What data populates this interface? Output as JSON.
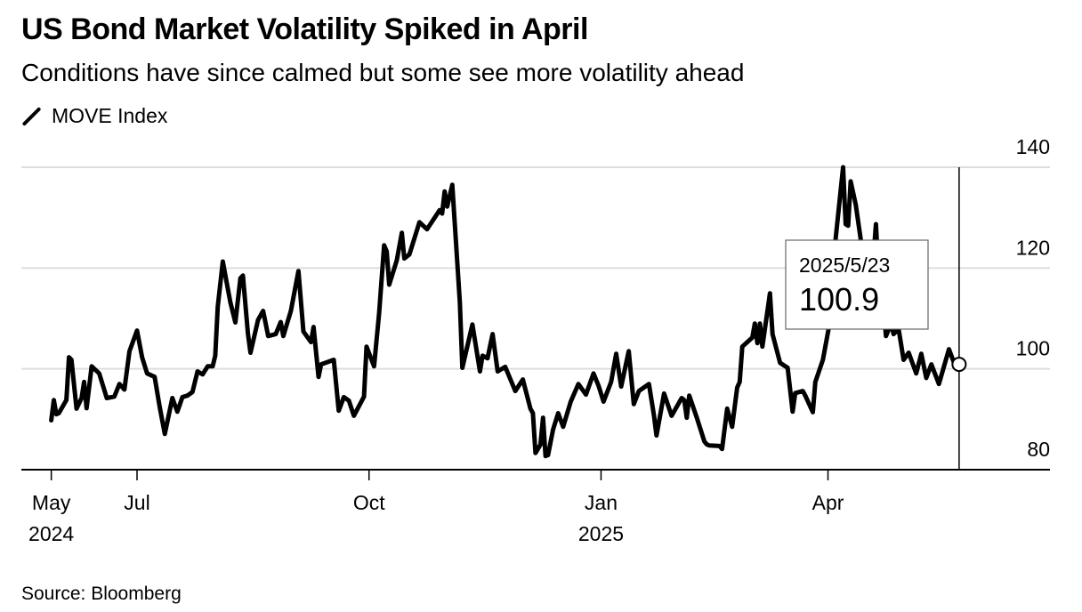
{
  "header": {
    "title": "US Bond Market Volatility Spiked in April",
    "subtitle": "Conditions have since calmed but some see more volatility ahead"
  },
  "footer": {
    "source": "Source: Bloomberg"
  },
  "tooltip": {
    "date": "2025/5/23",
    "value": "100.9"
  },
  "chart_data": {
    "type": "line",
    "title": "US Bond Market Volatility Spiked in April",
    "subtitle": "Conditions have since calmed but some see more volatility ahead",
    "xlabel": "",
    "ylabel": "",
    "ylim": [
      80,
      140
    ],
    "xlim": [
      "2024-05-28",
      "2025-05-23"
    ],
    "grid": true,
    "legend": {
      "position": "top-left",
      "entries": [
        "MOVE Index"
      ]
    },
    "line_color": "#000000",
    "y_ticks": [
      "140",
      "120",
      "100",
      "80"
    ],
    "x_ticks": [
      {
        "date": "2024-05-28",
        "label": "May",
        "sublabel": "2024"
      },
      {
        "date": "2024-07-01",
        "label": "Jul",
        "sublabel": ""
      },
      {
        "date": "2024-10-01",
        "label": "Oct",
        "sublabel": ""
      },
      {
        "date": "2025-01-01",
        "label": "Jan",
        "sublabel": "2025"
      },
      {
        "date": "2025-04-01",
        "label": "Apr",
        "sublabel": ""
      }
    ],
    "highlight": {
      "date": "2025-05-23",
      "value": 100.9,
      "label": "2025/5/23"
    },
    "series": [
      {
        "name": "MOVE Index",
        "points": [
          [
            "2024-05-28",
            89.8
          ],
          [
            "2024-05-29",
            93.8
          ],
          [
            "2024-05-30",
            91.0
          ],
          [
            "2024-05-31",
            91.2
          ],
          [
            "2024-06-03",
            93.8
          ],
          [
            "2024-06-04",
            102.3
          ],
          [
            "2024-06-05",
            101.8
          ],
          [
            "2024-06-07",
            92.1
          ],
          [
            "2024-06-09",
            94.2
          ],
          [
            "2024-06-10",
            97.4
          ],
          [
            "2024-06-11",
            92.2
          ],
          [
            "2024-06-13",
            100.5
          ],
          [
            "2024-06-16",
            99.1
          ],
          [
            "2024-06-19",
            94.2
          ],
          [
            "2024-06-22",
            94.5
          ],
          [
            "2024-06-24",
            97.0
          ],
          [
            "2024-06-26",
            95.9
          ],
          [
            "2024-06-28",
            103.5
          ],
          [
            "2024-07-01",
            107.6
          ],
          [
            "2024-07-03",
            102.3
          ],
          [
            "2024-07-05",
            99.1
          ],
          [
            "2024-07-08",
            98.4
          ],
          [
            "2024-07-10",
            92.4
          ],
          [
            "2024-07-12",
            87.1
          ],
          [
            "2024-07-15",
            94.2
          ],
          [
            "2024-07-17",
            91.5
          ],
          [
            "2024-07-19",
            94.4
          ],
          [
            "2024-07-21",
            94.7
          ],
          [
            "2024-07-23",
            95.4
          ],
          [
            "2024-07-25",
            99.5
          ],
          [
            "2024-07-27",
            98.9
          ],
          [
            "2024-07-29",
            100.5
          ],
          [
            "2024-07-31",
            100.5
          ],
          [
            "2024-08-01",
            102.6
          ],
          [
            "2024-08-02",
            112.3
          ],
          [
            "2024-08-04",
            121.3
          ],
          [
            "2024-08-07",
            113.2
          ],
          [
            "2024-08-09",
            109.2
          ],
          [
            "2024-08-11",
            118.0
          ],
          [
            "2024-08-12",
            118.5
          ],
          [
            "2024-08-14",
            106.9
          ],
          [
            "2024-08-15",
            103.2
          ],
          [
            "2024-08-18",
            109.7
          ],
          [
            "2024-08-20",
            111.5
          ],
          [
            "2024-08-22",
            106.5
          ],
          [
            "2024-08-25",
            106.9
          ],
          [
            "2024-08-27",
            109.3
          ],
          [
            "2024-08-28",
            106.5
          ],
          [
            "2024-08-31",
            111.5
          ],
          [
            "2024-09-03",
            119.4
          ],
          [
            "2024-09-05",
            107.4
          ],
          [
            "2024-09-08",
            105.3
          ],
          [
            "2024-09-09",
            108.3
          ],
          [
            "2024-09-11",
            98.4
          ],
          [
            "2024-09-12",
            100.9
          ],
          [
            "2024-09-17",
            101.8
          ],
          [
            "2024-09-19",
            91.7
          ],
          [
            "2024-09-21",
            94.4
          ],
          [
            "2024-09-23",
            93.7
          ],
          [
            "2024-09-25",
            90.7
          ],
          [
            "2024-09-29",
            94.5
          ],
          [
            "2024-09-30",
            104.4
          ],
          [
            "2024-10-03",
            100.5
          ],
          [
            "2024-10-05",
            111.1
          ],
          [
            "2024-10-07",
            124.5
          ],
          [
            "2024-10-08",
            123.3
          ],
          [
            "2024-10-09",
            116.7
          ],
          [
            "2024-10-12",
            121.5
          ],
          [
            "2024-10-14",
            127.0
          ],
          [
            "2024-10-15",
            121.9
          ],
          [
            "2024-10-17",
            122.7
          ],
          [
            "2024-10-21",
            129.1
          ],
          [
            "2024-10-24",
            127.7
          ],
          [
            "2024-10-29",
            131.5
          ],
          [
            "2024-10-30",
            130.8
          ],
          [
            "2024-10-31",
            135.2
          ],
          [
            "2024-11-01",
            132.2
          ],
          [
            "2024-11-03",
            136.5
          ],
          [
            "2024-11-06",
            113.2
          ],
          [
            "2024-11-07",
            100.2
          ],
          [
            "2024-11-11",
            108.8
          ],
          [
            "2024-11-14",
            99.5
          ],
          [
            "2024-11-15",
            102.6
          ],
          [
            "2024-11-17",
            102.1
          ],
          [
            "2024-11-19",
            106.9
          ],
          [
            "2024-11-21",
            99.5
          ],
          [
            "2024-11-24",
            100.4
          ],
          [
            "2024-11-28",
            95.6
          ],
          [
            "2024-12-01",
            97.9
          ],
          [
            "2024-12-04",
            92.1
          ],
          [
            "2024-12-05",
            91.2
          ],
          [
            "2024-12-06",
            83.3
          ],
          [
            "2024-12-08",
            85.0
          ],
          [
            "2024-12-09",
            90.3
          ],
          [
            "2024-12-10",
            82.7
          ],
          [
            "2024-12-11",
            82.9
          ],
          [
            "2024-12-13",
            88.0
          ],
          [
            "2024-12-15",
            91.2
          ],
          [
            "2024-12-17",
            88.5
          ],
          [
            "2024-12-20",
            93.5
          ],
          [
            "2024-12-23",
            97.0
          ],
          [
            "2024-12-26",
            94.9
          ],
          [
            "2024-12-29",
            99.1
          ],
          [
            "2024-12-31",
            96.7
          ],
          [
            "2025-01-02",
            93.5
          ],
          [
            "2025-01-05",
            97.4
          ],
          [
            "2025-01-07",
            103.0
          ],
          [
            "2025-01-09",
            96.5
          ],
          [
            "2025-01-12",
            103.5
          ],
          [
            "2025-01-14",
            93.0
          ],
          [
            "2025-01-16",
            95.6
          ],
          [
            "2025-01-20",
            97.0
          ],
          [
            "2025-01-22",
            90.7
          ],
          [
            "2025-01-23",
            86.8
          ],
          [
            "2025-01-26",
            95.1
          ],
          [
            "2025-01-29",
            90.7
          ],
          [
            "2025-02-02",
            94.2
          ],
          [
            "2025-02-03",
            93.8
          ],
          [
            "2025-02-04",
            90.3
          ],
          [
            "2025-02-05",
            94.7
          ],
          [
            "2025-02-08",
            90.3
          ],
          [
            "2025-02-11",
            85.6
          ],
          [
            "2025-02-12",
            85.0
          ],
          [
            "2025-02-13",
            84.8
          ],
          [
            "2025-02-17",
            84.7
          ],
          [
            "2025-02-18",
            84.1
          ],
          [
            "2025-02-20",
            92.1
          ],
          [
            "2025-02-22",
            88.5
          ],
          [
            "2025-02-24",
            96.3
          ],
          [
            "2025-02-25",
            97.4
          ],
          [
            "2025-02-26",
            104.4
          ],
          [
            "2025-03-02",
            106.2
          ],
          [
            "2025-03-03",
            109.0
          ],
          [
            "2025-03-04",
            105.1
          ],
          [
            "2025-03-05",
            109.0
          ],
          [
            "2025-03-06",
            104.4
          ],
          [
            "2025-03-09",
            115.0
          ],
          [
            "2025-03-10",
            106.9
          ],
          [
            "2025-03-13",
            101.2
          ],
          [
            "2025-03-16",
            100.2
          ],
          [
            "2025-03-18",
            91.5
          ],
          [
            "2025-03-19",
            95.2
          ],
          [
            "2025-03-22",
            95.6
          ],
          [
            "2025-03-23",
            94.7
          ],
          [
            "2025-03-26",
            91.4
          ],
          [
            "2025-03-27",
            97.4
          ],
          [
            "2025-03-30",
            101.8
          ],
          [
            "2025-04-02",
            110.0
          ],
          [
            "2025-04-04",
            125.6
          ],
          [
            "2025-04-07",
            140.0
          ],
          [
            "2025-04-08",
            128.7
          ],
          [
            "2025-04-09",
            128.4
          ],
          [
            "2025-04-10",
            137.2
          ],
          [
            "2025-04-12",
            132.6
          ],
          [
            "2025-04-14",
            125.6
          ],
          [
            "2025-04-16",
            123.4
          ],
          [
            "2025-04-17",
            119.9
          ],
          [
            "2025-04-18",
            115.0
          ],
          [
            "2025-04-20",
            128.7
          ],
          [
            "2025-04-21",
            119.4
          ],
          [
            "2025-04-23",
            112.3
          ],
          [
            "2025-04-24",
            106.5
          ],
          [
            "2025-04-26",
            109.0
          ],
          [
            "2025-04-27",
            106.9
          ],
          [
            "2025-04-29",
            107.9
          ],
          [
            "2025-05-01",
            101.8
          ],
          [
            "2025-05-03",
            103.2
          ],
          [
            "2025-05-06",
            99.1
          ],
          [
            "2025-05-08",
            103.0
          ],
          [
            "2025-05-10",
            98.2
          ],
          [
            "2025-05-12",
            100.9
          ],
          [
            "2025-05-15",
            97.0
          ],
          [
            "2025-05-19",
            103.9
          ],
          [
            "2025-05-21",
            101.2
          ],
          [
            "2025-05-23",
            100.9
          ]
        ]
      }
    ]
  }
}
